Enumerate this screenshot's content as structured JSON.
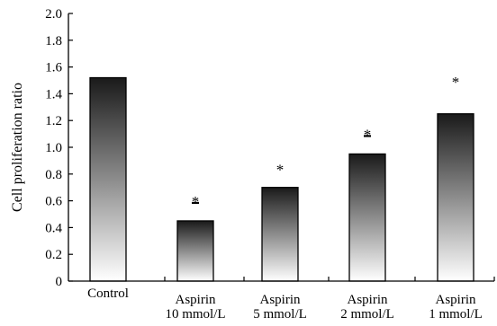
{
  "chart_data": {
    "type": "bar",
    "ylabel": "Cell proliferation ratio",
    "xlabel": "",
    "ylim": [
      0,
      2.0
    ],
    "yticks": [
      "0",
      "0.2",
      "0.4",
      "0.6",
      "0.8",
      "1.0",
      "1.2",
      "1.4",
      "1.6",
      "1.8",
      "2.0"
    ],
    "categories": [
      [
        "Control"
      ],
      [
        "Aspirin",
        "10 mmol/L"
      ],
      [
        "Aspirin",
        "5 mmol/L"
      ],
      [
        "Aspirin",
        "2 mmol/L"
      ],
      [
        "Aspirin",
        "1 mmol/L"
      ]
    ],
    "values": [
      1.52,
      0.45,
      0.7,
      0.95,
      1.25
    ],
    "annotations": [
      "",
      "*",
      "*",
      "*",
      "*"
    ],
    "annotation_dash": [
      false,
      true,
      false,
      true,
      false
    ],
    "colors": {
      "bar_dark": "#1a1a1a",
      "bar_light": "#ffffff",
      "axis": "#000000"
    }
  }
}
